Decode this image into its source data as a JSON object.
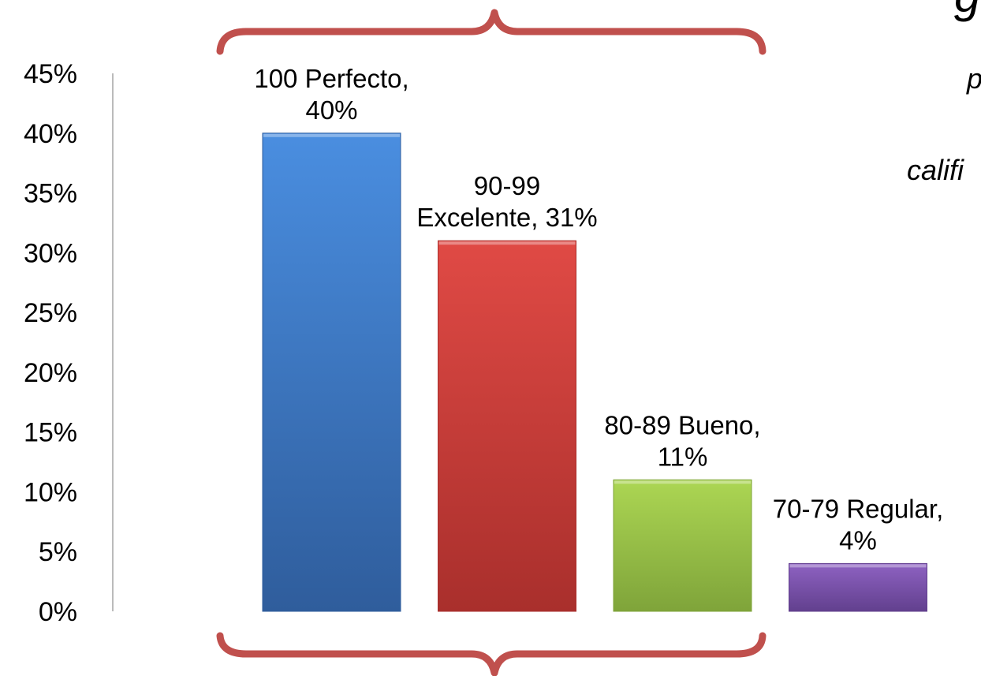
{
  "chart_data": {
    "type": "bar",
    "categories": [
      "100 Perfecto",
      "90-99 Excelente",
      "80-89 Bueno",
      "70-79 Regular"
    ],
    "values": [
      40,
      31,
      11,
      4
    ],
    "data_labels": [
      [
        "100 Perfecto,",
        "40%"
      ],
      [
        "90-99",
        "Excelente, 31%"
      ],
      [
        "80-89 Bueno,",
        "11%"
      ],
      [
        "70-79 Regular,",
        "4%"
      ]
    ],
    "colors": [
      [
        "#4a8ee0",
        "#2f5d9c"
      ],
      [
        "#e04a45",
        "#a92f2c"
      ],
      [
        "#acd653",
        "#7fa43a"
      ],
      [
        "#8e62c2",
        "#62408e"
      ]
    ],
    "ylim": [
      0,
      45
    ],
    "ytick_step": 5,
    "ytick_suffix": "%",
    "grid": false,
    "legend": "none"
  },
  "decor": {
    "brace_color": "#c0504d",
    "partial_side_text": [
      "g",
      "p",
      "califi"
    ]
  }
}
